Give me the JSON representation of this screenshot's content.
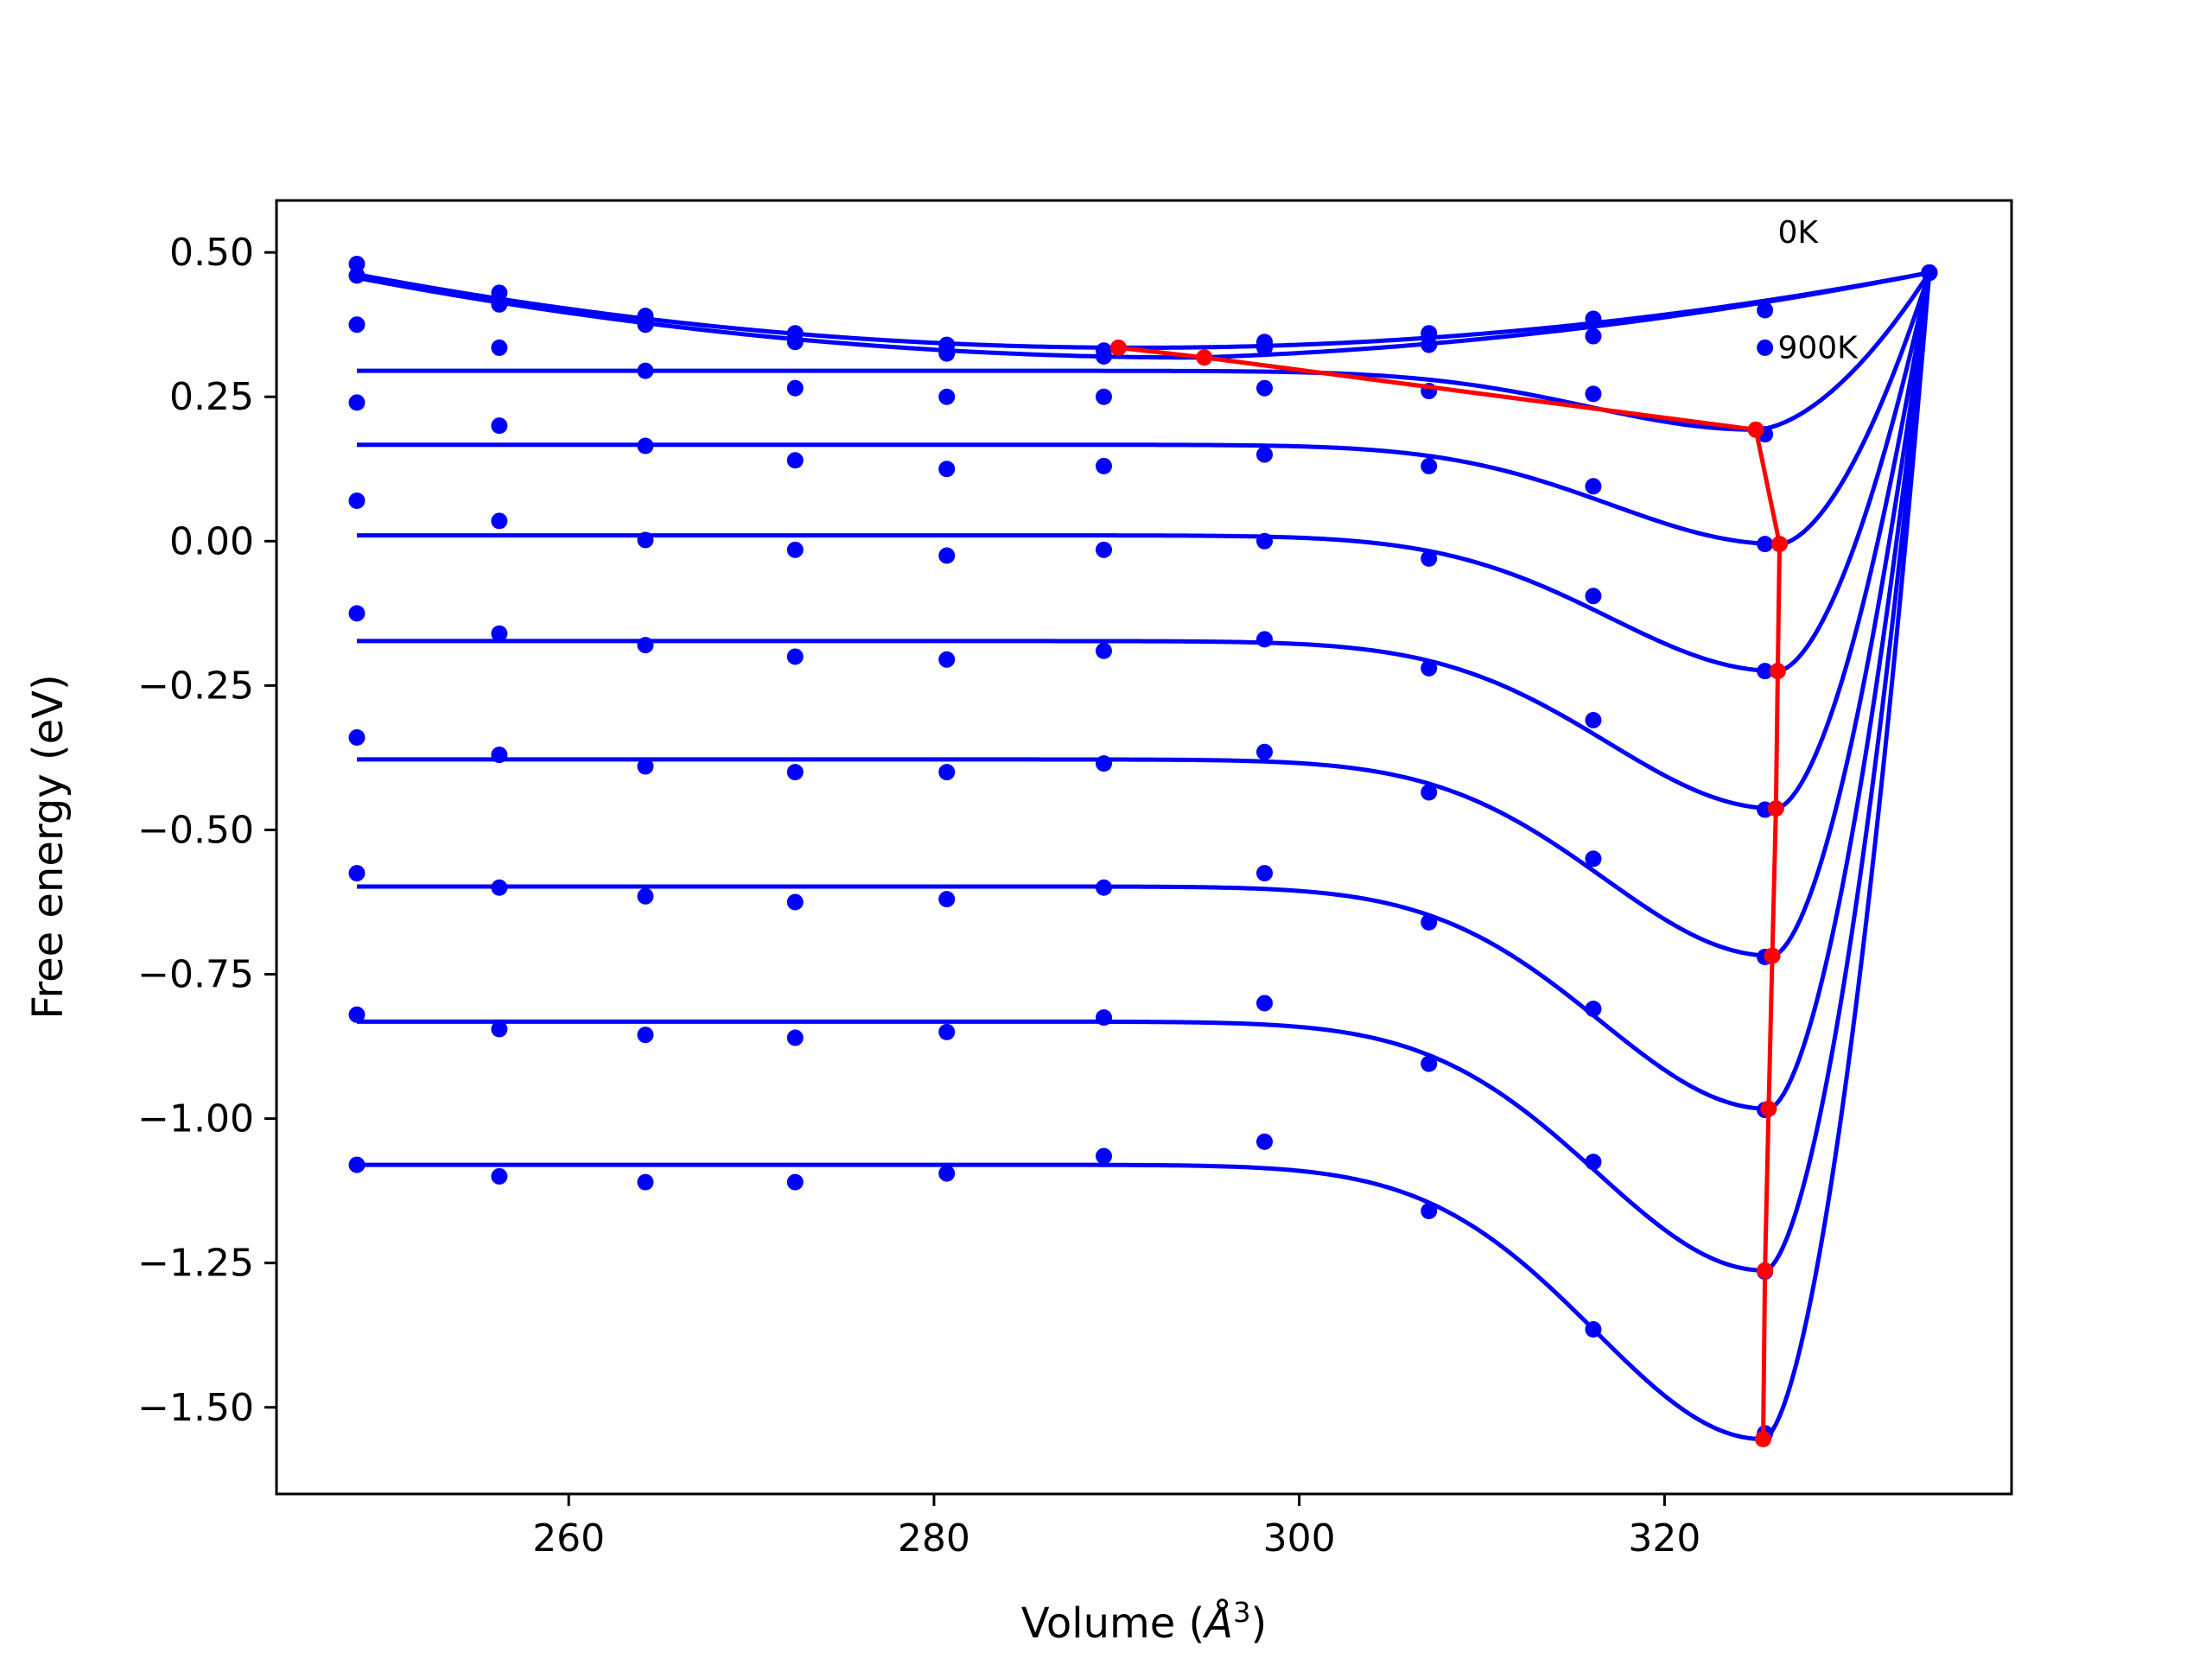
{
  "chart_data": {
    "type": "line",
    "xlabel": "Volume",
    "xlabel_unit_base": "Å",
    "xlabel_unit_exp": "3",
    "ylabel": "Free energy (eV)",
    "xlim": [
      244.0,
      339.0
    ],
    "ylim": [
      -1.65,
      0.59
    ],
    "x_ticks": [
      260,
      280,
      300,
      320
    ],
    "x_tick_labels": [
      "260",
      "280",
      "300",
      "320"
    ],
    "y_ticks": [
      0.5,
      0.25,
      0.0,
      -0.25,
      -0.5,
      -0.75,
      -1.0,
      -1.25,
      -1.5
    ],
    "y_tick_labels": [
      "0.50",
      "0.25",
      "0.00",
      "−0.25",
      "−0.50",
      "−0.75",
      "−1.00",
      "−1.25",
      "−1.50"
    ],
    "grid": false,
    "annotations": [
      {
        "text": "0K",
        "x": 326.2,
        "y": 0.535
      },
      {
        "text": "900K",
        "x": 326.2,
        "y": 0.335
      }
    ],
    "colors": {
      "series": "#0000ff",
      "minimum": "#ff0000"
    },
    "x_points": [
      248.4,
      256.2,
      264.2,
      272.4,
      280.7,
      289.3,
      298.1,
      307.1,
      316.1,
      325.5,
      334.5
    ],
    "series": [
      {
        "points": [
          0.48,
          0.43,
          0.39,
          0.36,
          0.34,
          0.33,
          0.345,
          0.36,
          0.385,
          0.4,
          0.465
        ],
        "fit": {
          "type": "parabola",
          "vmin": 291.0,
          "fmin": 0.335,
          "curvature": 7e-05
        }
      },
      {
        "points": [
          0.46,
          0.41,
          0.375,
          0.345,
          0.325,
          0.32,
          0.335,
          0.34,
          0.355,
          0.335,
          0.465
        ],
        "fit": {
          "type": "parabola",
          "vmin": 294.5,
          "fmin": 0.318,
          "curvature": 6.5e-05
        }
      },
      {
        "points": [
          0.375,
          0.335,
          0.295,
          0.265,
          0.25,
          0.25,
          0.265,
          0.26,
          0.255,
          0.185,
          0.465
        ],
        "fit": {
          "type": "well",
          "plateau": 0.295,
          "vmin": 325.0,
          "fmin": 0.193
        }
      },
      {
        "points": [
          0.24,
          0.2,
          0.165,
          0.14,
          0.125,
          0.13,
          0.15,
          0.13,
          0.095,
          -0.005,
          0.465
        ],
        "fit": {
          "type": "well",
          "plateau": 0.167,
          "vmin": 326.3,
          "fmin": -0.005
        }
      },
      {
        "points": [
          0.07,
          0.035,
          0.002,
          -0.015,
          -0.025,
          -0.015,
          0.0,
          -0.03,
          -0.095,
          -0.225,
          0.465
        ],
        "fit": {
          "type": "well",
          "plateau": 0.01,
          "vmin": 326.2,
          "fmin": -0.225
        }
      },
      {
        "points": [
          -0.125,
          -0.16,
          -0.18,
          -0.2,
          -0.205,
          -0.19,
          -0.17,
          -0.22,
          -0.31,
          -0.465,
          0.465
        ],
        "fit": {
          "type": "well",
          "plateau": -0.173,
          "vmin": 326.1,
          "fmin": -0.463
        }
      },
      {
        "points": [
          -0.34,
          -0.37,
          -0.39,
          -0.4,
          -0.4,
          -0.385,
          -0.365,
          -0.435,
          -0.55,
          -0.72,
          0.465
        ],
        "fit": {
          "type": "well",
          "plateau": -0.378,
          "vmin": 325.9,
          "fmin": -0.718
        }
      },
      {
        "points": [
          -0.575,
          -0.6,
          -0.615,
          -0.625,
          -0.62,
          -0.6,
          -0.575,
          -0.66,
          -0.81,
          -0.985,
          0.465
        ],
        "fit": {
          "type": "well",
          "plateau": -0.598,
          "vmin": 325.7,
          "fmin": -0.983
        }
      },
      {
        "points": [
          -0.82,
          -0.845,
          -0.855,
          -0.86,
          -0.85,
          -0.825,
          -0.8,
          -0.905,
          -1.075,
          -1.265,
          0.465
        ],
        "fit": {
          "type": "well",
          "plateau": -0.832,
          "vmin": 325.5,
          "fmin": -1.263
        }
      },
      {
        "points": [
          -1.08,
          -1.1,
          -1.11,
          -1.11,
          -1.095,
          -1.065,
          -1.04,
          -1.16,
          -1.365,
          -1.545,
          0.465
        ],
        "fit": {
          "type": "well",
          "plateau": -1.08,
          "vmin": 325.4,
          "fmin": -1.555
        }
      }
    ],
    "minimum_path": {
      "x": [
        290.1,
        294.8,
        325.0,
        326.3,
        326.2,
        326.1,
        325.9,
        325.7,
        325.5,
        325.4
      ],
      "y": [
        0.335,
        0.318,
        0.193,
        -0.005,
        -0.225,
        -0.463,
        -0.718,
        -0.983,
        -1.263,
        -1.555
      ]
    }
  }
}
